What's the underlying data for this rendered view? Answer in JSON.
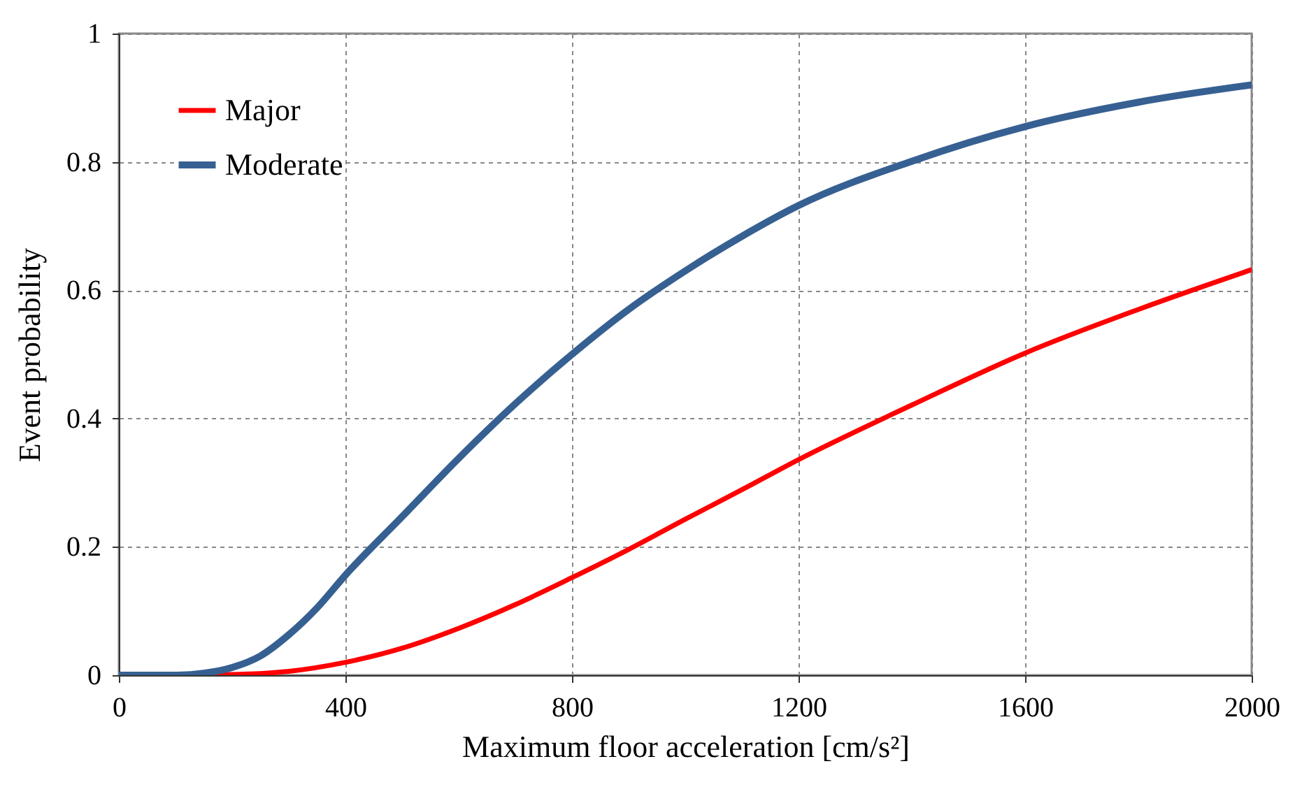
{
  "chart_data": {
    "type": "line",
    "xlabel": "Maximum floor acceleration [cm/s²]",
    "ylabel": "Event probability",
    "xlim": [
      0,
      2000
    ],
    "xticks": [
      0,
      400,
      800,
      1200,
      1600,
      2000
    ],
    "ylim": [
      0,
      1
    ],
    "yticks": [
      0,
      0.2,
      0.4,
      0.6,
      0.8,
      1
    ],
    "grid": true,
    "legend": "top left",
    "marker": "none",
    "line_style": "solid",
    "series": [
      {
        "name": "Major",
        "color": "#ff0000",
        "x": [
          0,
          100,
          200,
          300,
          400,
          500,
          600,
          700,
          800,
          900,
          1000,
          1100,
          1200,
          1400,
          1600,
          1800,
          2000
        ],
        "values": [
          0,
          0,
          0.001,
          0.006,
          0.02,
          0.042,
          0.073,
          0.11,
          0.152,
          0.196,
          0.243,
          0.289,
          0.336,
          0.421,
          0.502,
          0.57,
          0.632
        ]
      },
      {
        "name": "Moderate",
        "color": "#376092",
        "x": [
          0,
          100,
          150,
          200,
          250,
          300,
          350,
          400,
          500,
          600,
          700,
          800,
          900,
          1000,
          1100,
          1200,
          1400,
          1600,
          1800,
          2000
        ],
        "values": [
          0,
          0,
          0.003,
          0.012,
          0.03,
          0.063,
          0.105,
          0.156,
          0.247,
          0.338,
          0.423,
          0.5,
          0.57,
          0.63,
          0.684,
          0.732,
          0.801,
          0.855,
          0.893,
          0.92
        ]
      }
    ]
  }
}
